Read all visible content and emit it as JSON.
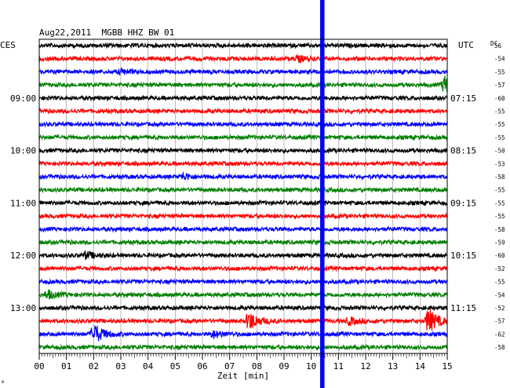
{
  "header": {
    "title": "Aug22,2011  MGBB HHZ BW 01",
    "left_tz": "CES",
    "right_tz": "UTC",
    "dc_label": "DC"
  },
  "chart_data": {
    "type": "line",
    "title": "Aug22,2011  MGBB HHZ BW 01",
    "xlabel": "Zeit [min]",
    "ylabel": "",
    "xlim": [
      0,
      15
    ],
    "x_ticks": [
      "00",
      "01",
      "02",
      "03",
      "04",
      "05",
      "06",
      "07",
      "08",
      "09",
      "10",
      "11",
      "12",
      "13",
      "14",
      "15"
    ],
    "row_colors": [
      "#000000",
      "#ff0000",
      "#0000ff",
      "#008000"
    ],
    "left_hour_labels": [
      {
        "row": 4,
        "label": "09:00"
      },
      {
        "row": 8,
        "label": "10:00"
      },
      {
        "row": 12,
        "label": "11:00"
      },
      {
        "row": 16,
        "label": "12:00"
      },
      {
        "row": 20,
        "label": "13:00"
      }
    ],
    "right_time_labels": [
      {
        "row": 4,
        "label": "07:15"
      },
      {
        "row": 8,
        "label": "08:15"
      },
      {
        "row": 12,
        "label": "09:15"
      },
      {
        "row": 16,
        "label": "10:15"
      },
      {
        "row": 20,
        "label": "11:15"
      }
    ],
    "dc_offsets": [
      "56",
      "-54",
      "-55",
      "-57",
      "-60",
      "-55",
      "-55",
      "-55",
      "-50",
      "-53",
      "-58",
      "-55",
      "-55",
      "-55",
      "-58",
      "-59",
      "-60",
      "-52",
      "-55",
      "-54",
      "-52",
      "-57",
      "-62",
      "-58"
    ],
    "events": [
      {
        "row": 1,
        "minute": 9.5,
        "amp": 0.3
      },
      {
        "row": 2,
        "minute": 3.0,
        "amp": 0.25
      },
      {
        "row": 3,
        "minute": 14.9,
        "amp": 0.9
      },
      {
        "row": 10,
        "minute": 5.3,
        "amp": 0.3
      },
      {
        "row": 16,
        "minute": 1.7,
        "amp": 0.35
      },
      {
        "row": 19,
        "minute": 0.3,
        "amp": 0.45
      },
      {
        "row": 21,
        "minute": 7.7,
        "amp": 1.0
      },
      {
        "row": 21,
        "minute": 11.4,
        "amp": 0.35
      },
      {
        "row": 21,
        "minute": 14.3,
        "amp": 1.3
      },
      {
        "row": 22,
        "minute": 2.0,
        "amp": 1.1
      },
      {
        "row": 22,
        "minute": 6.4,
        "amp": 0.35
      }
    ],
    "marker_minute": 10.4,
    "marker_color": "#0000ff",
    "grid": true,
    "legend": "none"
  },
  "footer": {
    "corner_mark": "A"
  }
}
